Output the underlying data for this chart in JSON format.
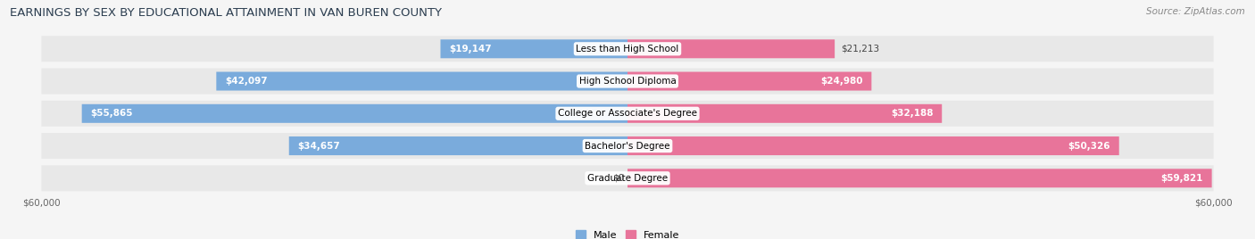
{
  "title": "EARNINGS BY SEX BY EDUCATIONAL ATTAINMENT IN VAN BUREN COUNTY",
  "source": "Source: ZipAtlas.com",
  "categories": [
    "Less than High School",
    "High School Diploma",
    "College or Associate's Degree",
    "Bachelor's Degree",
    "Graduate Degree"
  ],
  "male_values": [
    19147,
    42097,
    55865,
    34657,
    0
  ],
  "female_values": [
    21213,
    24980,
    32188,
    50326,
    59821
  ],
  "male_color": "#7aabdc",
  "female_color": "#e8749a",
  "male_label": "Male",
  "female_label": "Female",
  "max_val": 60000,
  "background_color": "#f5f5f5",
  "row_bg_color": "#e8e8e8",
  "title_color": "#2c3e50",
  "source_color": "#888888",
  "title_fontsize": 9.5,
  "source_fontsize": 7.5,
  "label_fontsize": 7.5,
  "value_fontsize": 7.5,
  "tick_fontsize": 7.5
}
